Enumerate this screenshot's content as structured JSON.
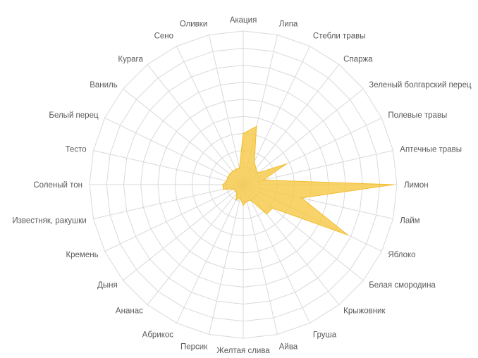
{
  "chart_data": {
    "type": "radar",
    "categories": [
      "Акация",
      "Липа",
      "Стебли травы",
      "Спаржа",
      "Зеленый болгарский перец",
      "Полевые травы",
      "Аптечные травы",
      "Лимон",
      "Лайм",
      "Яблоко",
      "Белая смородина",
      "Крыжовник",
      "Груша",
      "Айва",
      "Желтая слива",
      "Персик",
      "Абрикос",
      "Ананас",
      "Дыня",
      "Кремень",
      "Известняк, ракушки",
      "Соленый тон",
      "Тесто",
      "Белый перец",
      "Ваниль",
      "Курага",
      "Сено",
      "Оливки"
    ],
    "series": [
      {
        "values": [
          3,
          3.5,
          1.5,
          1.2,
          1.1,
          2.8,
          1.2,
          8.8,
          3.5,
          6.8,
          2.2,
          2.2,
          1,
          1,
          1.2,
          0.8,
          1,
          0.6,
          0.6,
          0.6,
          1.2,
          1.2,
          1,
          1,
          1,
          1,
          1,
          1
        ],
        "color": "#f7c948"
      }
    ],
    "rmax": 9,
    "rings": 9,
    "grid": true,
    "legend": "none"
  }
}
